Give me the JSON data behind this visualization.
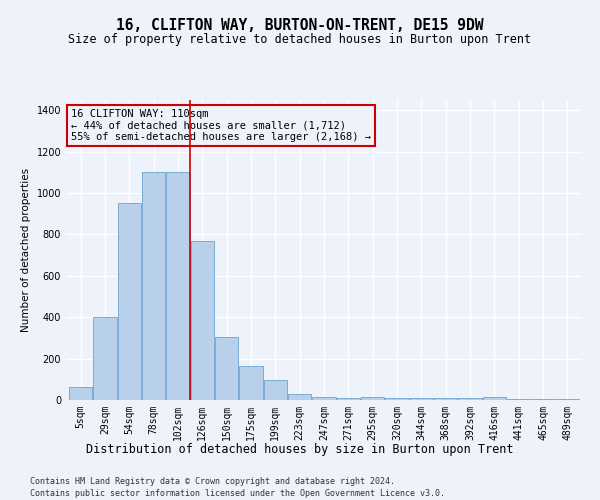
{
  "title1": "16, CLIFTON WAY, BURTON-ON-TRENT, DE15 9DW",
  "title2": "Size of property relative to detached houses in Burton upon Trent",
  "xlabel": "Distribution of detached houses by size in Burton upon Trent",
  "ylabel": "Number of detached properties",
  "footnote1": "Contains HM Land Registry data © Crown copyright and database right 2024.",
  "footnote2": "Contains public sector information licensed under the Open Government Licence v3.0.",
  "annotation_title": "16 CLIFTON WAY: 110sqm",
  "annotation_line2": "← 44% of detached houses are smaller (1,712)",
  "annotation_line3": "55% of semi-detached houses are larger (2,168) →",
  "bar_labels": [
    "5sqm",
    "29sqm",
    "54sqm",
    "78sqm",
    "102sqm",
    "126sqm",
    "150sqm",
    "175sqm",
    "199sqm",
    "223sqm",
    "247sqm",
    "271sqm",
    "295sqm",
    "320sqm",
    "344sqm",
    "368sqm",
    "392sqm",
    "416sqm",
    "441sqm",
    "465sqm",
    "489sqm"
  ],
  "bar_values": [
    65,
    400,
    950,
    1100,
    1100,
    770,
    305,
    165,
    95,
    30,
    15,
    10,
    15,
    10,
    10,
    10,
    10,
    15,
    5,
    5,
    5
  ],
  "bar_color": "#b8d0ea",
  "bar_edge_color": "#7aadd4",
  "vline_x_index": 4,
  "vline_color": "#cc0000",
  "annotation_box_color": "#cc0000",
  "ylim": [
    0,
    1450
  ],
  "yticks": [
    0,
    200,
    400,
    600,
    800,
    1000,
    1200,
    1400
  ],
  "background_color": "#eef2fb",
  "grid_color": "#d8e0f0",
  "title1_fontsize": 10.5,
  "title2_fontsize": 8.5,
  "xlabel_fontsize": 8.5,
  "ylabel_fontsize": 7.5,
  "annotation_fontsize": 7.5,
  "tick_fontsize": 7,
  "footnote_fontsize": 6
}
